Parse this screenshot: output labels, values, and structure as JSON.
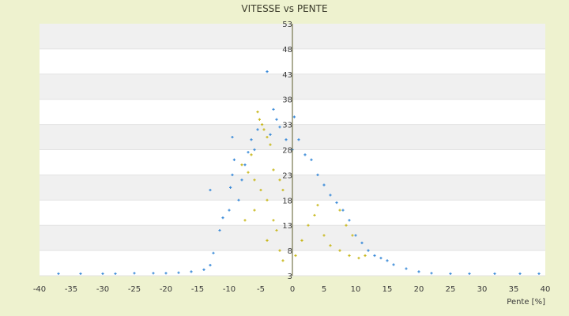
{
  "chart_data": {
    "type": "scatter",
    "title": "VITESSE vs PENTE",
    "xlabel": "Pente [%]",
    "ylabel": "",
    "xlim": [
      -40,
      40
    ],
    "ylim": [
      3,
      53
    ],
    "x_ticks": [
      -40,
      -35,
      -30,
      -25,
      -20,
      -15,
      -10,
      -5,
      0,
      5,
      10,
      15,
      20,
      25,
      30,
      35,
      40
    ],
    "y_ticks": [
      3,
      8,
      13,
      18,
      23,
      28,
      33,
      38,
      43,
      48,
      53
    ],
    "grid": "horizontal bands",
    "series": [
      {
        "color": "#3a8ad8",
        "marker": "+",
        "points": [
          [
            -37,
            3.4
          ],
          [
            -33.5,
            3.4
          ],
          [
            -30,
            3.4
          ],
          [
            -28,
            3.4
          ],
          [
            -25,
            3.5
          ],
          [
            -22,
            3.5
          ],
          [
            -20,
            3.5
          ],
          [
            -18,
            3.6
          ],
          [
            -16,
            3.8
          ],
          [
            -14,
            4.2
          ],
          [
            -13,
            5.1
          ],
          [
            -12.5,
            7.5
          ],
          [
            -13,
            20
          ],
          [
            -11.5,
            12
          ],
          [
            -11,
            14.5
          ],
          [
            -10,
            16
          ],
          [
            -9.8,
            20.5
          ],
          [
            -9.5,
            23
          ],
          [
            -9.2,
            26
          ],
          [
            -9.5,
            30.5
          ],
          [
            -8.5,
            18
          ],
          [
            -8,
            22
          ],
          [
            -7.5,
            25
          ],
          [
            -7,
            27.5
          ],
          [
            -6.5,
            30
          ],
          [
            -6,
            28
          ],
          [
            -5.5,
            32
          ],
          [
            -4,
            43.5
          ],
          [
            -3.5,
            31
          ],
          [
            -3,
            36
          ],
          [
            -2.5,
            34
          ],
          [
            -2,
            32.5
          ],
          [
            -1,
            30
          ],
          [
            0,
            28
          ],
          [
            0.3,
            34.5
          ],
          [
            1,
            30
          ],
          [
            2,
            27
          ],
          [
            3,
            26
          ],
          [
            4,
            23
          ],
          [
            5,
            21
          ],
          [
            6,
            19
          ],
          [
            7,
            17.5
          ],
          [
            8,
            16
          ],
          [
            9,
            14
          ],
          [
            10,
            11
          ],
          [
            11,
            9.5
          ],
          [
            12,
            8
          ],
          [
            13,
            7
          ],
          [
            14,
            6.5
          ],
          [
            15,
            6
          ],
          [
            16,
            5.2
          ],
          [
            18,
            4.4
          ],
          [
            20,
            3.8
          ],
          [
            22,
            3.5
          ],
          [
            25,
            3.4
          ],
          [
            28,
            3.4
          ],
          [
            32,
            3.4
          ],
          [
            36,
            3.4
          ],
          [
            39,
            3.4
          ]
        ]
      },
      {
        "color": "#c8b81e",
        "marker": "+",
        "points": [
          [
            -5.5,
            35.5
          ],
          [
            -5.2,
            34
          ],
          [
            -4.8,
            33
          ],
          [
            -4.5,
            32
          ],
          [
            -4,
            30.5
          ],
          [
            -3.5,
            29
          ],
          [
            -6.5,
            27
          ],
          [
            -8,
            25
          ],
          [
            -7,
            23.5
          ],
          [
            -6,
            22
          ],
          [
            -3,
            24
          ],
          [
            -2,
            22
          ],
          [
            -1.5,
            20
          ],
          [
            -5,
            20
          ],
          [
            -4,
            18
          ],
          [
            -6,
            16
          ],
          [
            -7.5,
            14
          ],
          [
            -3,
            14
          ],
          [
            -2.5,
            12
          ],
          [
            -4,
            10
          ],
          [
            -2,
            8
          ],
          [
            -1.5,
            6
          ],
          [
            0.5,
            7
          ],
          [
            1.5,
            10
          ],
          [
            2.5,
            13
          ],
          [
            3.5,
            15
          ],
          [
            4,
            17
          ],
          [
            5,
            11
          ],
          [
            6,
            9
          ],
          [
            7.5,
            8
          ],
          [
            9,
            7
          ],
          [
            10.5,
            6.5
          ],
          [
            11.5,
            7
          ],
          [
            9.5,
            11
          ],
          [
            8.5,
            13
          ],
          [
            7.5,
            16
          ]
        ]
      }
    ]
  }
}
